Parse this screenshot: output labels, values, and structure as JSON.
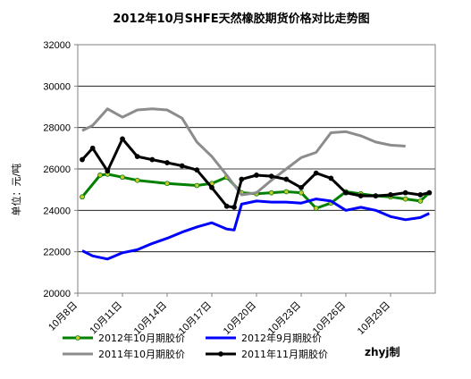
{
  "chart_data": {
    "type": "line",
    "title": "2012年10月SHFE天然橡胶期货价格对比走势图",
    "ylabel": "单位：元/吨",
    "xlabel": "",
    "ylim": [
      20000,
      32000
    ],
    "yticks": [
      "20000",
      "22000",
      "24000",
      "26000",
      "28000",
      "30000",
      "32000"
    ],
    "xlim": [
      8,
      32
    ],
    "xticks": [
      {
        "x": 8,
        "label": "10月8日"
      },
      {
        "x": 11,
        "label": "10月11日"
      },
      {
        "x": 14,
        "label": "10月14日"
      },
      {
        "x": 17,
        "label": "10月17日"
      },
      {
        "x": 20,
        "label": "10月20日"
      },
      {
        "x": 23,
        "label": "10月23日"
      },
      {
        "x": 26,
        "label": "10月26日"
      },
      {
        "x": 29,
        "label": "10月29日"
      }
    ],
    "grid": "horizontal",
    "legend_placement": "bottom",
    "credit": "zhyj制",
    "series": [
      {
        "name": "2012年10月期胶价",
        "color": "#008000",
        "marker": "#c8c830",
        "x": [
          8.3,
          9.5,
          10,
          11,
          12,
          14,
          16,
          17,
          18,
          19,
          20,
          21,
          22,
          23,
          24,
          25,
          26,
          27,
          28,
          29,
          30,
          31,
          31.6
        ],
        "y": [
          24650,
          25700,
          25750,
          25600,
          25450,
          25300,
          25200,
          25300,
          25600,
          24850,
          24800,
          24850,
          24900,
          24850,
          24100,
          24350,
          24900,
          24800,
          24700,
          24650,
          24550,
          24450,
          24850
        ]
      },
      {
        "name": "2012年9月期胶价",
        "color": "#0000ff",
        "marker": "",
        "x": [
          8.3,
          9,
          10,
          11,
          12,
          13,
          14,
          15,
          16,
          17,
          18,
          18.5,
          19,
          20,
          21,
          22,
          23,
          24,
          25,
          26,
          27,
          28,
          29,
          30,
          31,
          31.6
        ],
        "y": [
          22050,
          21800,
          21650,
          21950,
          22100,
          22400,
          22650,
          22950,
          23200,
          23400,
          23100,
          23050,
          24300,
          24450,
          24400,
          24400,
          24350,
          24550,
          24450,
          24000,
          24150,
          24000,
          23700,
          23550,
          23650,
          23850
        ]
      },
      {
        "name": "2011年10月期胶价",
        "color": "#8c8c8c",
        "marker": "",
        "x": [
          8.3,
          9,
          10,
          11,
          12,
          13,
          14,
          15,
          16,
          17,
          18,
          19,
          20,
          21,
          22,
          23,
          24,
          25,
          26,
          27,
          28,
          29,
          30
        ],
        "y": [
          27850,
          28100,
          28900,
          28500,
          28850,
          28900,
          28850,
          28450,
          27300,
          26600,
          25700,
          24750,
          24850,
          25450,
          26000,
          26550,
          26800,
          27750,
          27800,
          27600,
          27300,
          27150,
          27100
        ]
      },
      {
        "name": "2011年11月期胶价",
        "color": "#000000",
        "marker": "#000000",
        "x": [
          8.3,
          9,
          10,
          11,
          12,
          13,
          14,
          15,
          16,
          17,
          18,
          18.5,
          19,
          20,
          21,
          22,
          23,
          24,
          25,
          26,
          27,
          28,
          29,
          30,
          31,
          31.6
        ],
        "y": [
          26450,
          27000,
          25900,
          27450,
          26600,
          26450,
          26300,
          26150,
          25950,
          25100,
          24200,
          24150,
          25500,
          25700,
          25650,
          25500,
          25100,
          25800,
          25550,
          24850,
          24700,
          24700,
          24750,
          24850,
          24750,
          24850
        ]
      }
    ]
  }
}
